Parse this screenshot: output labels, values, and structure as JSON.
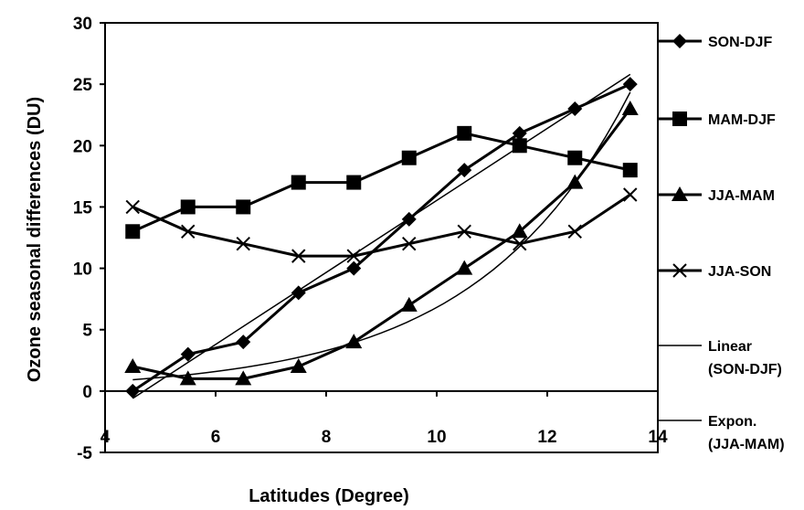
{
  "chart_data": {
    "type": "line",
    "xlabel": "Latitudes (Degree)",
    "ylabel": "Ozone seasonal differences (DU)",
    "xlim": [
      4,
      14
    ],
    "ylim": [
      -5,
      30
    ],
    "xticks": [
      4,
      6,
      8,
      10,
      12,
      14
    ],
    "yticks": [
      -5,
      0,
      5,
      10,
      15,
      20,
      25,
      30
    ],
    "x": [
      4.5,
      5.5,
      6.5,
      7.5,
      8.5,
      9.5,
      10.5,
      11.5,
      12.5,
      13.5
    ],
    "legend_position": "right",
    "series": [
      {
        "name": "SON-DJF",
        "marker": "diamond",
        "values": [
          0,
          3,
          4,
          8,
          10,
          14,
          18,
          21,
          23,
          25
        ]
      },
      {
        "name": "MAM-DJF",
        "marker": "square",
        "values": [
          13,
          15,
          15,
          17,
          17,
          19,
          21,
          20,
          19,
          18
        ]
      },
      {
        "name": "JJA-MAM",
        "marker": "triangle",
        "values": [
          2,
          1,
          1,
          2,
          4,
          7,
          10,
          13,
          17,
          23
        ]
      },
      {
        "name": "JJA-SON",
        "marker": "cross",
        "values": [
          15,
          13,
          12,
          11,
          11,
          12,
          13,
          12,
          13,
          16
        ]
      }
    ],
    "trendlines": [
      {
        "name": "Linear (SON-DJF)",
        "legend_lines": [
          "Linear",
          "(SON-DJF)"
        ],
        "type": "linear",
        "of": "SON-DJF"
      },
      {
        "name": "Expon. (JJA-MAM)",
        "legend_lines": [
          "Expon.",
          "(JJA-MAM)"
        ],
        "type": "exponential",
        "of": "JJA-MAM"
      }
    ],
    "line_color": "#000000"
  }
}
